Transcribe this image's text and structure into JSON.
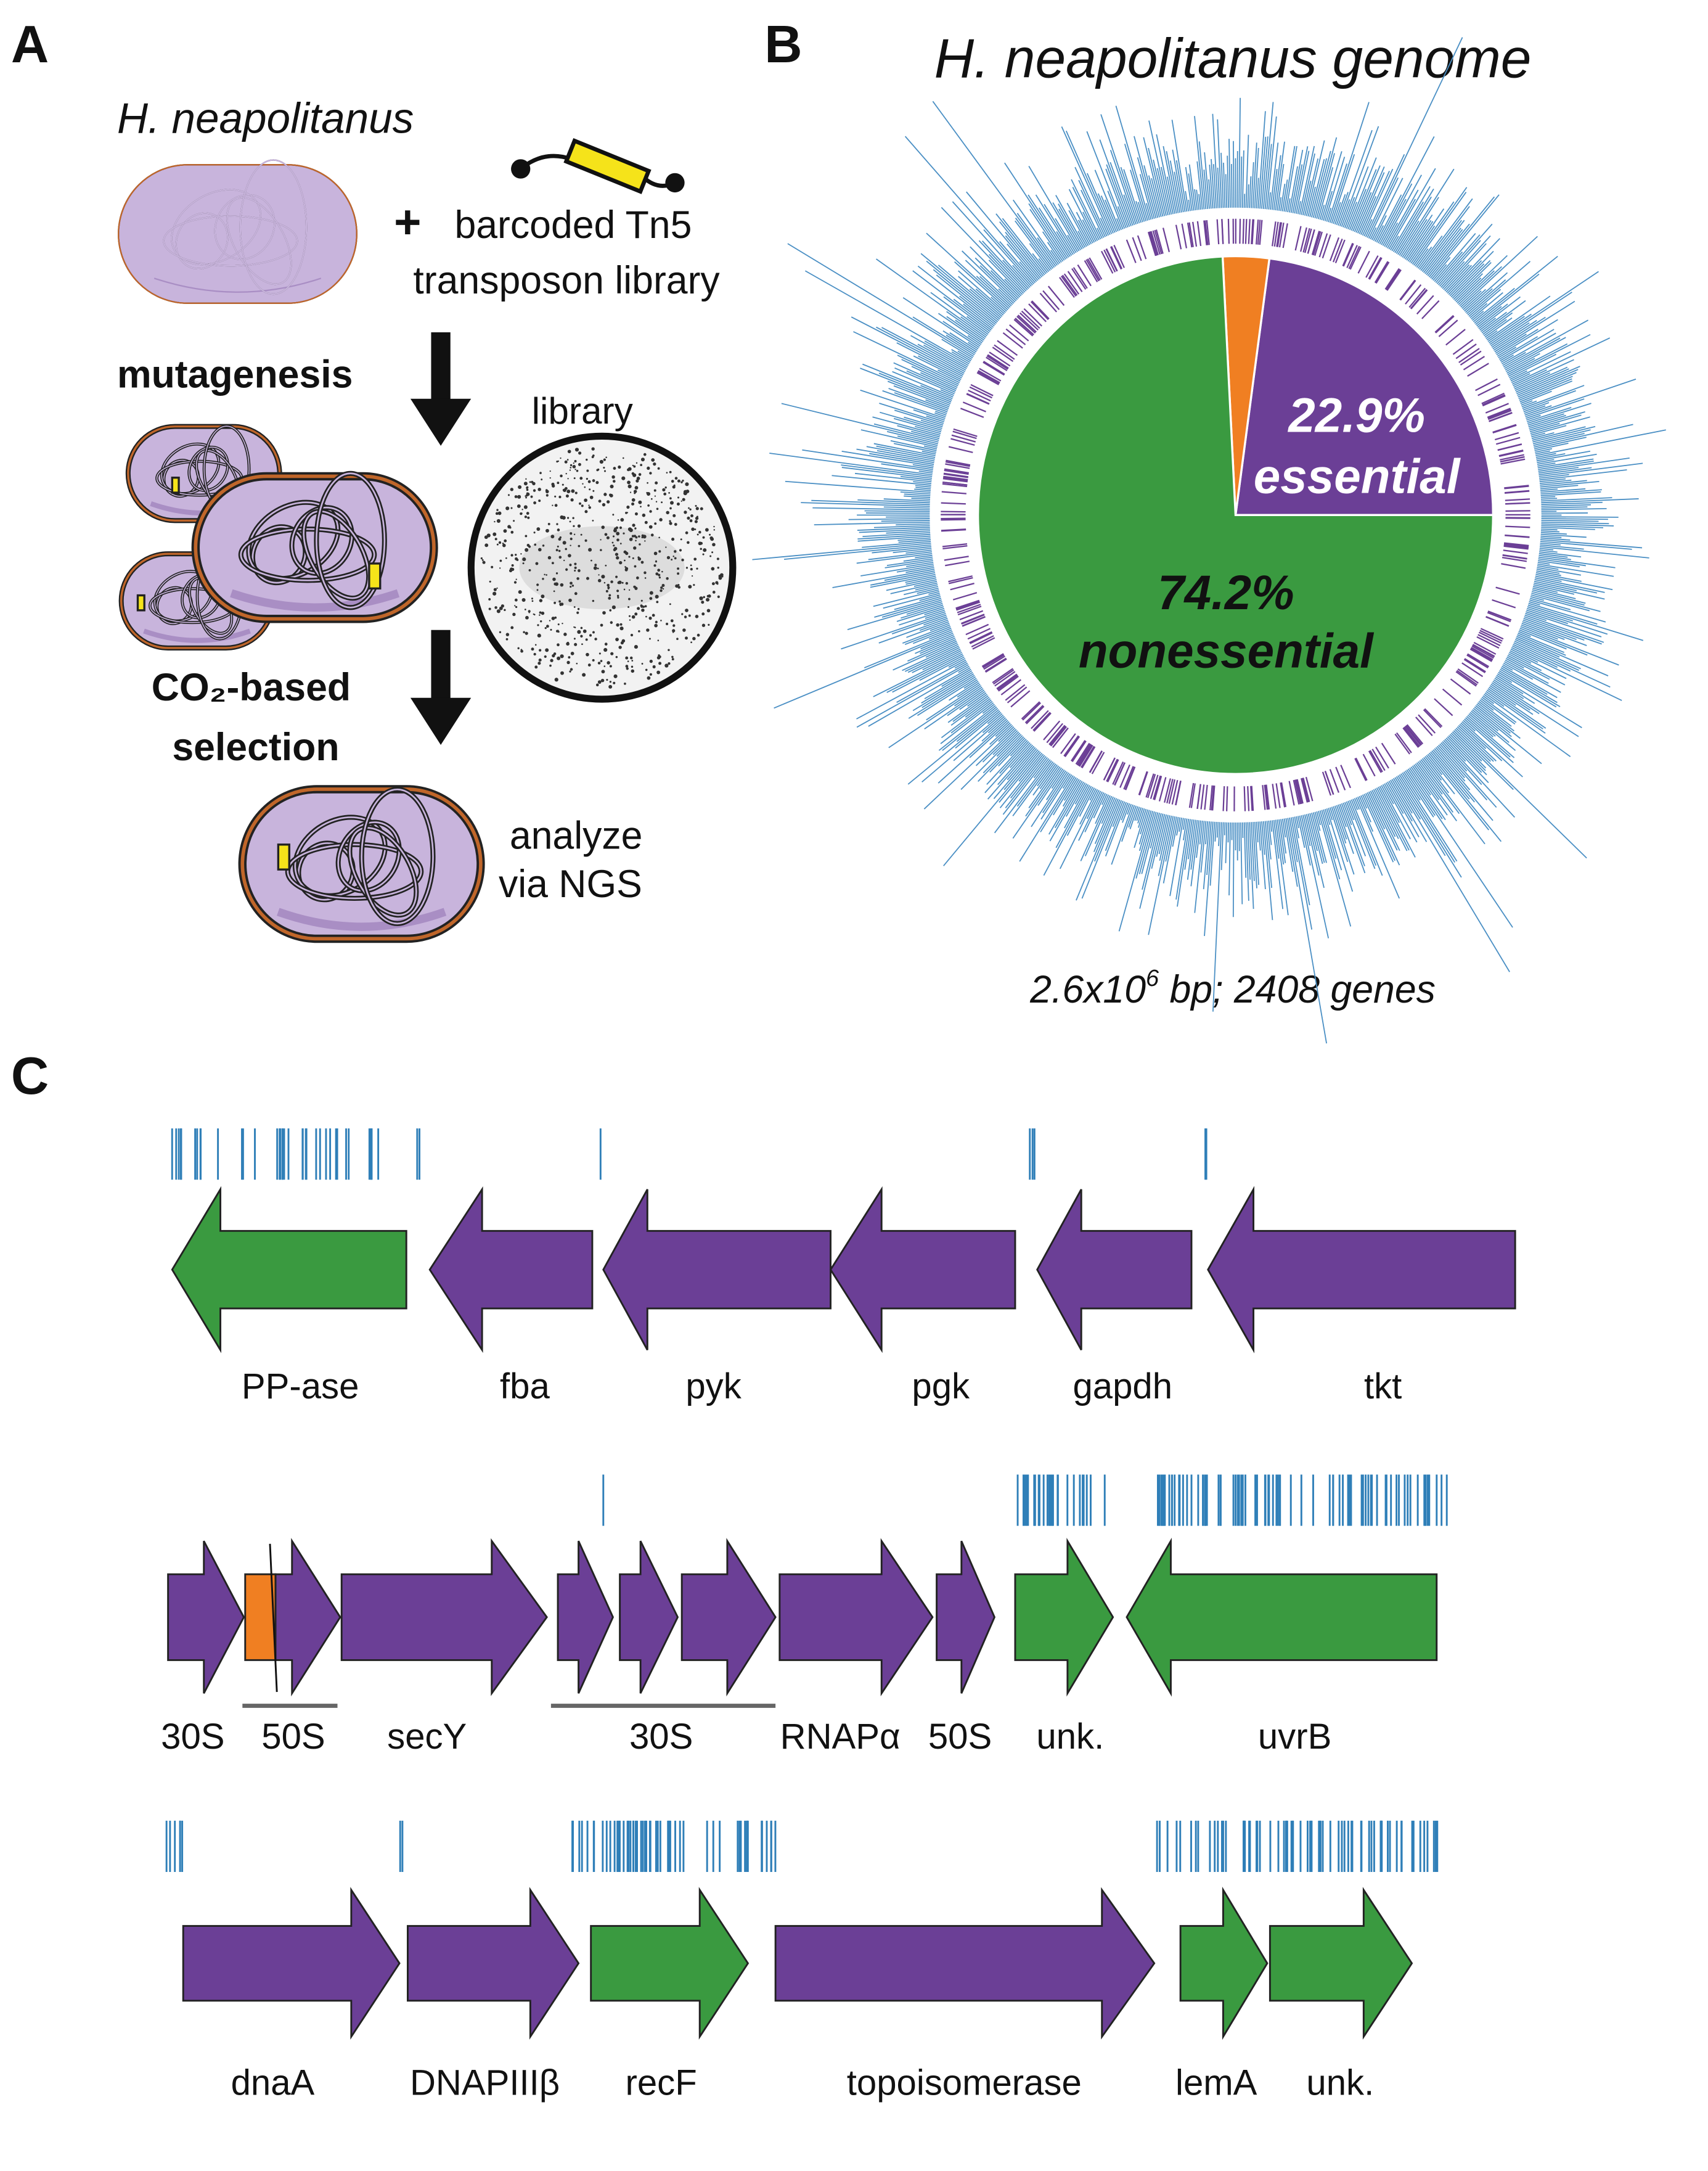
{
  "panel_letters": [
    "A",
    "B",
    "C"
  ],
  "panel_a": {
    "organism": "H. neapolitanus",
    "plus": "+",
    "library_text": [
      "barcoded Tn5",
      "transposon library"
    ],
    "step1": "mutagenesis",
    "library": "library",
    "step2": [
      "CO₂-based",
      "selection"
    ],
    "analyze": [
      "analyze",
      "via NGS"
    ]
  },
  "chart_data": {
    "type": "pie",
    "title": "H. neapolitanus genome",
    "categories": [
      "essential",
      null,
      "nonessential"
    ],
    "values": [
      22.9,
      2.9,
      74.2
    ],
    "value_labels": [
      "22.9%",
      null,
      "74.2%"
    ],
    "colors": [
      "#6b3f96",
      "#f07f22",
      "#3a9a40"
    ],
    "caption": [
      "2.6x10",
      "6",
      " bp; 2408 genes"
    ]
  },
  "panel_c": {
    "rows": [
      {
        "genes": [
          {
            "label": "PP-ase",
            "color": "#3a9a40"
          },
          {
            "label": "fba",
            "color": "#6b3f96"
          },
          {
            "label": "pyk",
            "color": "#6b3f96"
          },
          {
            "label": "pgk",
            "color": "#6b3f96"
          },
          {
            "label": "gapdh",
            "color": "#6b3f96"
          },
          {
            "label": "tkt",
            "color": "#6b3f96"
          }
        ]
      },
      {
        "genes": [
          {
            "label": "30S",
            "color": "#6b3f96"
          },
          {
            "label": "50S",
            "color": "#6b3f96"
          },
          {
            "label": "secY",
            "color": "#6b3f96"
          },
          {
            "label": "30S",
            "color": "#6b3f96"
          },
          {
            "label": "RNAPα",
            "color": "#6b3f96"
          },
          {
            "label": "50S",
            "color": "#6b3f96"
          },
          {
            "label": "unk.",
            "color": "#3a9a40"
          },
          {
            "label": "uvrB",
            "color": "#3a9a40"
          }
        ]
      },
      {
        "genes": [
          {
            "label": "dnaA",
            "color": "#6b3f96"
          },
          {
            "label": "DNAPIIIβ",
            "color": "#6b3f96"
          },
          {
            "label": "recF",
            "color": "#3a9a40"
          },
          {
            "label": "topoisomerase",
            "color": "#6b3f96"
          },
          {
            "label": "lemA",
            "color": "#3a9a40"
          },
          {
            "label": "unk.",
            "color": "#3a9a40"
          }
        ]
      }
    ]
  }
}
